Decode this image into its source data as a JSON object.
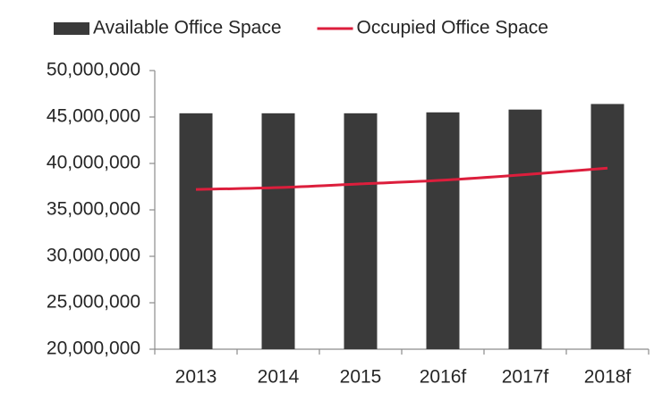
{
  "chart_data": {
    "type": "bar",
    "categories": [
      "2013",
      "2014",
      "2015",
      "2016f",
      "2017f",
      "2018f"
    ],
    "series": [
      {
        "name": "Available Office Space",
        "color": "#3a3a3a",
        "type": "bar",
        "values": [
          45400000,
          45400000,
          45400000,
          45500000,
          45800000,
          46400000
        ]
      },
      {
        "name": "Occupied Office Space",
        "color": "#dc1e3c",
        "type": "line",
        "values": [
          37200000,
          37400000,
          37800000,
          38200000,
          38800000,
          39500000
        ]
      }
    ],
    "ylim": [
      20000000,
      50000000
    ],
    "yticks": [
      {
        "value": 20000000,
        "label": "20,000,000"
      },
      {
        "value": 25000000,
        "label": "25,000,000"
      },
      {
        "value": 30000000,
        "label": "30,000,000"
      },
      {
        "value": 35000000,
        "label": "35,000,000"
      },
      {
        "value": 40000000,
        "label": "40,000,000"
      },
      {
        "value": 45000000,
        "label": "45,000,000"
      },
      {
        "value": 50000000,
        "label": "50,000,000"
      }
    ],
    "grid": false,
    "legend": "top"
  }
}
